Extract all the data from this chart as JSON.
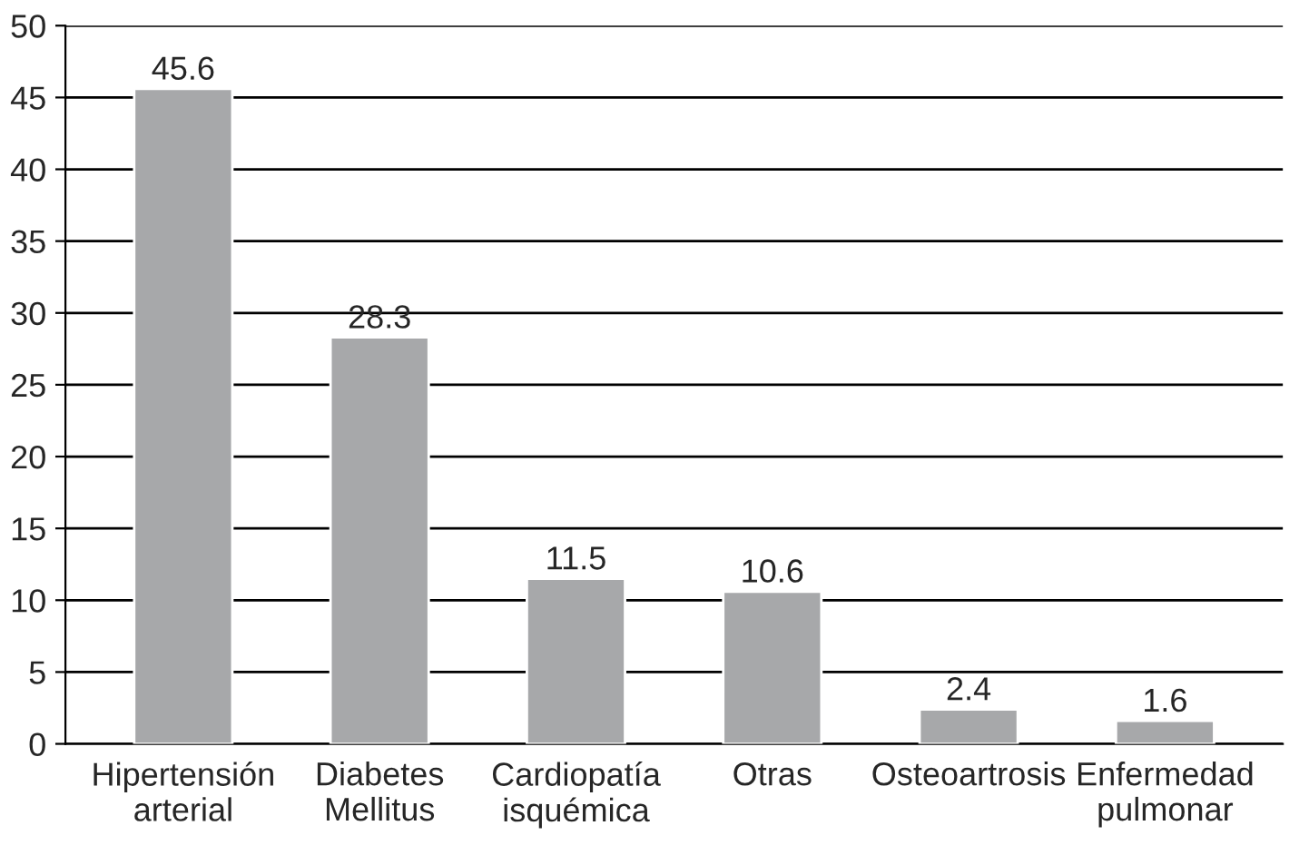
{
  "chart_data": {
    "type": "bar",
    "categories": [
      "Hipertensión\narterial",
      "Diabetes\nMellitus",
      "Cardiopatía\nisquémica",
      "Otras",
      "Osteoartrosis",
      "Enfermedad\npulmonar"
    ],
    "values": [
      45.6,
      28.3,
      11.5,
      10.6,
      2.4,
      1.6
    ],
    "color": "#a7a8aa",
    "ylim": [
      0,
      50
    ],
    "yticks": [
      0,
      5,
      10,
      15,
      20,
      25,
      30,
      35,
      40,
      45,
      50
    ],
    "grid": "y",
    "data_labels": true
  }
}
